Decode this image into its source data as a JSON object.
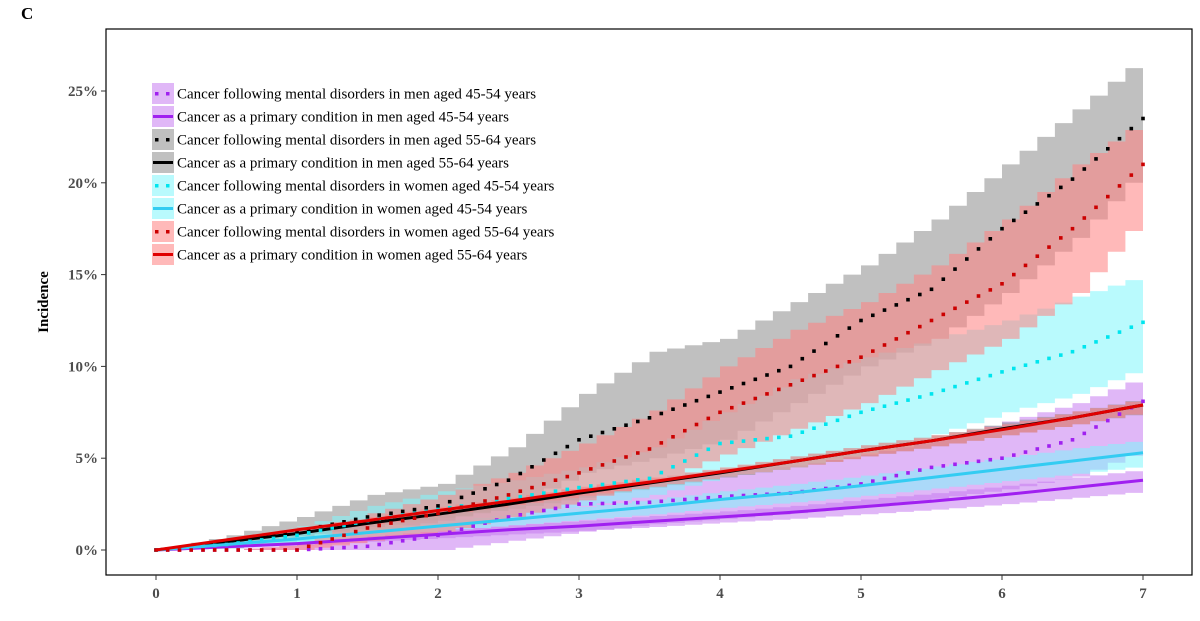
{
  "panel_label": "C",
  "chart_data": {
    "type": "line",
    "title": "",
    "xlabel": "",
    "ylabel": "Incidence",
    "xlim": [
      -0.35,
      7.35
    ],
    "ylim": [
      -1.3,
      28.7
    ],
    "x_ticks": [
      0,
      1,
      2,
      3,
      4,
      5,
      6,
      7
    ],
    "x_tick_labels": [
      "0",
      "1",
      "2",
      "3",
      "4",
      "5",
      "6",
      "7"
    ],
    "y_ticks": [
      0,
      5,
      10,
      15,
      20,
      25
    ],
    "y_tick_labels": [
      "0%",
      "5%",
      "10%",
      "15%",
      "20%",
      "25%"
    ],
    "grid": false,
    "legend_position": "top-left",
    "x": [
      0,
      0.5,
      1,
      1.5,
      2,
      2.5,
      3,
      3.5,
      4,
      4.5,
      5,
      5.5,
      6,
      6.5,
      7
    ],
    "series": [
      {
        "name": "Cancer following mental disorders in men aged 45-54 years",
        "line_style": "dotted",
        "color": "#a020f0",
        "band_color": "#c77cf0",
        "values": [
          0,
          0,
          0,
          0.2,
          0.8,
          1.8,
          2.5,
          2.6,
          2.9,
          3.1,
          3.6,
          4.5,
          5.0,
          6.0,
          8.1
        ],
        "ci_lower": [
          0,
          0,
          0,
          0,
          0,
          0.5,
          1.0,
          1.4,
          1.7,
          2.0,
          2.4,
          2.8,
          3.3,
          4.0,
          5.5
        ],
        "ci_upper": [
          0,
          0,
          0.3,
          1.0,
          2.0,
          2.8,
          3.4,
          3.8,
          4.3,
          4.6,
          5.2,
          6.0,
          7.0,
          8.0,
          9.5
        ]
      },
      {
        "name": "Cancer as a primary condition in men aged 45-54 years",
        "line_style": "solid",
        "color": "#a020f0",
        "band_color": "#c77cf0",
        "values": [
          0,
          0.18,
          0.35,
          0.6,
          0.85,
          1.1,
          1.3,
          1.55,
          1.8,
          2.05,
          2.35,
          2.65,
          3.0,
          3.4,
          3.8
        ],
        "ci_lower": [
          0,
          0.1,
          0.25,
          0.45,
          0.65,
          0.85,
          1.05,
          1.25,
          1.5,
          1.7,
          1.95,
          2.2,
          2.5,
          2.85,
          3.2
        ],
        "ci_upper": [
          0,
          0.25,
          0.45,
          0.75,
          1.05,
          1.35,
          1.6,
          1.85,
          2.1,
          2.4,
          2.75,
          3.1,
          3.5,
          3.95,
          4.4
        ]
      },
      {
        "name": "Cancer following mental disorders in men aged 55-64 years",
        "line_style": "dotted",
        "color": "#000000",
        "band_color": "#8c8c8c",
        "values": [
          0,
          0.4,
          1.0,
          1.8,
          2.4,
          3.8,
          6.0,
          7.2,
          8.6,
          10.0,
          12.5,
          14.2,
          17.5,
          20.2,
          23.5
        ],
        "ci_lower": [
          0,
          0.1,
          0.5,
          1.0,
          1.6,
          2.5,
          4.2,
          5.0,
          6.0,
          8.0,
          10.0,
          11.5,
          14.0,
          17.0,
          21.0
        ],
        "ci_upper": [
          0,
          0.8,
          1.8,
          3.0,
          3.6,
          5.6,
          8.5,
          10.8,
          11.5,
          13.5,
          15.5,
          18.0,
          21.0,
          24.0,
          27.0
        ]
      },
      {
        "name": "Cancer as a primary condition in men aged 55-64 years",
        "line_style": "solid",
        "color": "#000000",
        "band_color": "#8c8c8c",
        "values": [
          0,
          0.45,
          0.9,
          1.45,
          1.95,
          2.5,
          3.1,
          3.65,
          4.2,
          4.8,
          5.4,
          5.95,
          6.6,
          7.2,
          7.9
        ],
        "ci_lower": [
          0,
          0.35,
          0.75,
          1.25,
          1.75,
          2.25,
          2.85,
          3.4,
          3.95,
          4.5,
          5.1,
          5.65,
          6.25,
          6.85,
          7.5
        ],
        "ci_upper": [
          0,
          0.55,
          1.05,
          1.65,
          2.15,
          2.75,
          3.35,
          3.9,
          4.45,
          5.1,
          5.7,
          6.25,
          6.95,
          7.55,
          8.3
        ]
      },
      {
        "name": "Cancer following mental disorders in women aged 45-54 years",
        "line_style": "dotted",
        "color": "#00e5ee",
        "band_color": "#7ff5fb",
        "values": [
          0,
          0.3,
          0.8,
          1.6,
          2.2,
          2.8,
          3.4,
          3.9,
          5.8,
          6.2,
          7.5,
          8.5,
          9.7,
          10.8,
          12.4
        ],
        "ci_lower": [
          0,
          0.1,
          0.4,
          0.9,
          1.4,
          1.9,
          2.4,
          3.0,
          4.0,
          4.5,
          5.3,
          6.3,
          7.5,
          8.5,
          10.0
        ],
        "ci_upper": [
          0,
          0.5,
          1.3,
          2.4,
          3.2,
          3.8,
          4.5,
          5.6,
          7.5,
          9.3,
          10.5,
          11.5,
          12.5,
          13.8,
          15.0
        ]
      },
      {
        "name": "Cancer as a primary condition in women aged 45-54 years",
        "line_style": "solid",
        "color": "#33ccf2",
        "band_color": "#7ff5fb",
        "values": [
          0,
          0.3,
          0.6,
          0.95,
          1.3,
          1.65,
          2.0,
          2.35,
          2.75,
          3.1,
          3.5,
          3.95,
          4.4,
          4.85,
          5.3
        ],
        "ci_lower": [
          0,
          0.2,
          0.45,
          0.75,
          1.05,
          1.35,
          1.65,
          1.95,
          2.3,
          2.6,
          2.95,
          3.35,
          3.75,
          4.15,
          4.6
        ],
        "ci_upper": [
          0,
          0.4,
          0.75,
          1.15,
          1.55,
          1.95,
          2.35,
          2.75,
          3.2,
          3.6,
          4.05,
          4.55,
          5.05,
          5.55,
          6.0
        ]
      },
      {
        "name": "Cancer following mental disorders in women aged 55-64 years",
        "line_style": "dotted",
        "color": "#cc0000",
        "band_color": "#ff8080",
        "values": [
          0,
          0,
          0,
          1.2,
          2.0,
          3.0,
          4.2,
          5.5,
          7.5,
          9.0,
          10.5,
          12.5,
          14.5,
          17.5,
          21.0
        ],
        "ci_lower": [
          0,
          0,
          0,
          0.5,
          1.0,
          1.8,
          2.7,
          3.7,
          5.2,
          6.6,
          8.0,
          9.8,
          11.5,
          14.0,
          18.5
        ],
        "ci_upper": [
          0,
          0,
          0.3,
          2.0,
          3.0,
          4.2,
          5.8,
          7.6,
          10.0,
          12.0,
          13.5,
          15.5,
          18.0,
          21.0,
          23.5
        ]
      },
      {
        "name": "Cancer as a primary condition in women aged 55-64 years",
        "line_style": "solid",
        "color": "#e00000",
        "band_color": "#ff8080",
        "values": [
          0,
          0.55,
          1.1,
          1.6,
          2.15,
          2.65,
          3.2,
          3.7,
          4.25,
          4.8,
          5.4,
          5.95,
          6.55,
          7.2,
          7.9
        ],
        "ci_lower": [
          0,
          0.45,
          0.95,
          1.4,
          1.95,
          2.45,
          2.95,
          3.45,
          4.0,
          4.5,
          5.1,
          5.65,
          6.25,
          6.85,
          7.55
        ],
        "ci_upper": [
          0,
          0.65,
          1.25,
          1.8,
          2.35,
          2.85,
          3.45,
          3.95,
          4.5,
          5.1,
          5.7,
          6.25,
          6.85,
          7.55,
          8.25
        ]
      }
    ]
  }
}
